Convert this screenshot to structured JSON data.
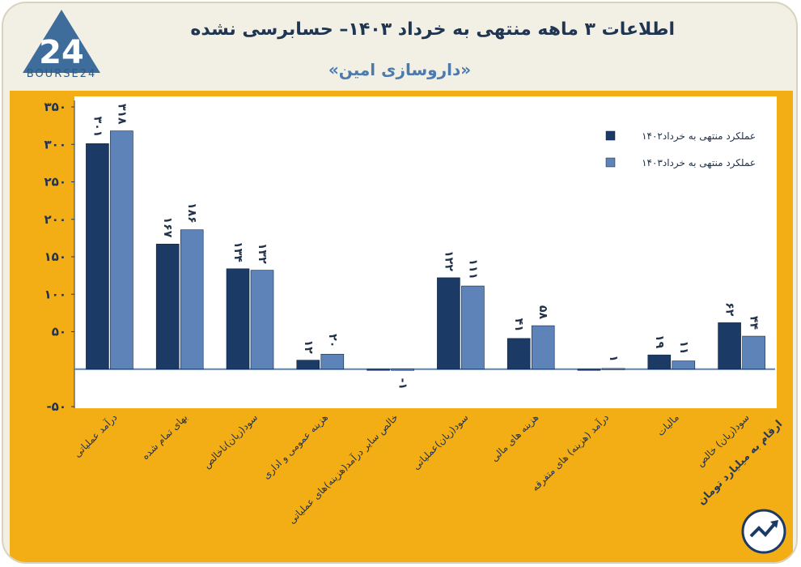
{
  "header": {
    "title": "اطلاعات ۳ ماهه منتهی به خرداد ۱۴۰۳– حسابرسی نشده",
    "subtitle": "«داروسازی امین»",
    "logo_text": "BOURSE24"
  },
  "unit_label": "ارقام به میلیارد تومان",
  "colors": {
    "series_1402": "#1b3a66",
    "series_1403": "#5d83b8",
    "panel": "#f4ae15",
    "plot_bg": "#ffffff",
    "text": "#22324a"
  },
  "chart_data": {
    "type": "bar",
    "categories": [
      "درآمد عملیاتی",
      "بهای تمام شده",
      "سود(زیان)ناخالص",
      "هزینه عمومی و اداری",
      "خالص سایر درآمد(هزینه)های عملیاتی",
      "سود(زیان)عملیاتی",
      "هزینه های مالی",
      "درآمد (هزینه) های متفرقه",
      "مالیات",
      "سود(زیان) خالص"
    ],
    "series": [
      {
        "name": "عملکرد منتهی به خرداد۱۴۰۲",
        "values": [
          301,
          167,
          134,
          12,
          0,
          122,
          41,
          -1,
          19,
          62
        ],
        "labels": [
          "۳۰۱",
          "۱۶۷",
          "۱۳۴",
          "۱۲",
          "",
          "۱۲۲",
          "۴۱",
          "",
          "۱۹",
          "۶۲"
        ]
      },
      {
        "name": "عملکرد منتهی به خرداد۱۴۰۳",
        "values": [
          318,
          186,
          132,
          20,
          -1,
          111,
          58,
          1,
          11,
          44
        ],
        "labels": [
          "۳۱۸",
          "۱۸۶",
          "۱۳۲",
          "۲۰",
          "-۱",
          "۱۱۱",
          "۵۸",
          "۱",
          "۱۱",
          "۴۴"
        ]
      }
    ],
    "ylim": [
      -50,
      350
    ],
    "yticks": [
      -50,
      50,
      100,
      150,
      200,
      250,
      300,
      350
    ],
    "ytick_labels": [
      "-۵۰",
      "۵۰",
      "۱۰۰",
      "۱۵۰",
      "۲۰۰",
      "۲۵۰",
      "۳۰۰",
      "۳۵۰"
    ],
    "legend_position": "top-right",
    "grid": false
  }
}
